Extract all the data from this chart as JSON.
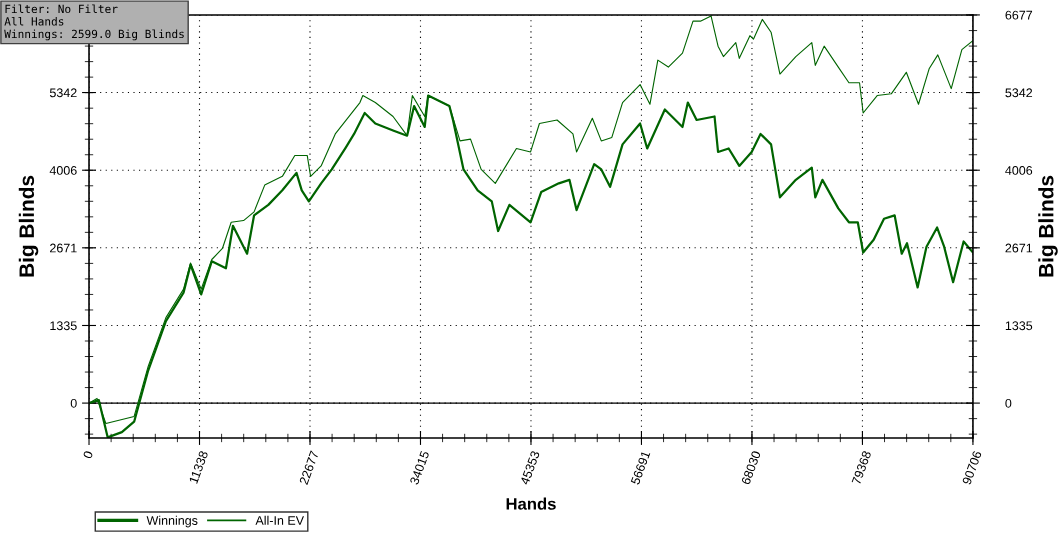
{
  "chart_data": {
    "type": "line",
    "xlabel": "Hands",
    "ylabel": "Big Blinds",
    "y2label": "Big Blinds",
    "annotations": [
      "Filter: No Filter\nAll Hands\nWinnings: 2599.0 Big Blinds"
    ],
    "xlim": [
      0,
      90706
    ],
    "xticks": [
      0,
      11338,
      22677,
      34015,
      45353,
      56691,
      68030,
      79368,
      90706
    ],
    "ylim": [
      -600,
      6677
    ],
    "yticks": [
      0,
      1335,
      2671,
      4006,
      5342,
      {
        "value": 6677,
        "label": null
      }
    ],
    "y2lim": [
      -600,
      6677
    ],
    "y2ticks": [
      0,
      1335,
      2671,
      4006,
      5342,
      6677
    ],
    "grid": true,
    "legend": "bottom left",
    "ref_lines": [
      {
        "axis": "y",
        "value": 0,
        "color": "#000000"
      }
    ],
    "series": [
      {
        "name": "Winnings",
        "color": "#006400",
        "x": [
          0,
          1010,
          1920,
          3370,
          4630,
          6070,
          7890,
          9700,
          10420,
          11510,
          12600,
          14050,
          14770,
          16220,
          16940,
          18400,
          19840,
          21290,
          21830,
          22560,
          23820,
          24910,
          26360,
          27200,
          28290,
          29380,
          31200,
          32640,
          33360,
          34450,
          34800,
          36980,
          37350,
          38430,
          39880,
          41330,
          41980,
          43140,
          45310,
          46400,
          48210,
          49300,
          50030,
          51840,
          52570,
          53470,
          54750,
          56550,
          57280,
          59090,
          60900,
          61450,
          62350,
          64190,
          64550,
          65640,
          66730,
          68000,
          68910,
          69990,
          70900,
          72530,
          74170,
          74530,
          75260,
          76890,
          77980,
          78890,
          79440,
          80520,
          81580,
          82670,
          83400,
          83940,
          85030,
          85940,
          87030,
          87750,
          88670,
          89750,
          90660
        ],
        "values": [
          0,
          50,
          -590,
          -500,
          -320,
          560,
          1410,
          1900,
          2380,
          1870,
          2440,
          2320,
          3050,
          2570,
          3230,
          3410,
          3660,
          3960,
          3660,
          3470,
          3780,
          4020,
          4400,
          4630,
          4990,
          4810,
          4690,
          4600,
          5110,
          4750,
          5290,
          5110,
          4870,
          4020,
          3660,
          3470,
          2960,
          3410,
          3110,
          3630,
          3780,
          3840,
          3320,
          4110,
          4020,
          3720,
          4450,
          4810,
          4380,
          5050,
          4750,
          5170,
          4870,
          4930,
          4320,
          4380,
          4080,
          4320,
          4630,
          4450,
          3540,
          3840,
          4050,
          3540,
          3840,
          3350,
          3110,
          3110,
          2590,
          2810,
          3170,
          3230,
          2570,
          2750,
          1990,
          2690,
          3020,
          2690,
          2080,
          2780,
          2599
        ]
      },
      {
        "name": "All-In EV",
        "color": "#006400",
        "x": [
          0,
          820,
          1730,
          3180,
          4630,
          6070,
          7890,
          9700,
          10420,
          11510,
          12600,
          13690,
          14590,
          15860,
          16940,
          18030,
          19840,
          21120,
          22390,
          22740,
          23820,
          25270,
          27800,
          28100,
          29380,
          31200,
          32640,
          33180,
          34450,
          34800,
          36980,
          38070,
          39150,
          40240,
          41690,
          43860,
          45310,
          46220,
          48030,
          49660,
          50030,
          51650,
          52570,
          53650,
          54750,
          56550,
          57560,
          58370,
          59450,
          60900,
          61980,
          62740,
          63830,
          64550,
          65100,
          66370,
          66730,
          67820,
          68180,
          69090,
          69990,
          70900,
          72530,
          74170,
          74530,
          75440,
          76890,
          77980,
          79070,
          79440,
          80880,
          82330,
          83870,
          85120,
          86210,
          87100,
          88480,
          89570,
          90660
        ],
        "values": [
          0,
          80,
          -350,
          -290,
          -230,
          630,
          1470,
          1960,
          2410,
          1960,
          2470,
          2660,
          3110,
          3140,
          3290,
          3750,
          3900,
          4260,
          4260,
          3900,
          4080,
          4630,
          5170,
          5290,
          5170,
          4930,
          4600,
          5290,
          4930,
          5290,
          5110,
          4510,
          4540,
          4020,
          3780,
          4380,
          4320,
          4810,
          4870,
          4630,
          4320,
          4900,
          4510,
          4570,
          5170,
          5480,
          5140,
          5900,
          5780,
          6020,
          6570,
          6570,
          6660,
          6140,
          5960,
          6200,
          5930,
          6320,
          6260,
          6600,
          6380,
          5660,
          5960,
          6200,
          5810,
          6140,
          5780,
          5510,
          5510,
          4990,
          5290,
          5320,
          5690,
          5140,
          5750,
          5990,
          5410,
          6080,
          6230
        ]
      }
    ]
  }
}
